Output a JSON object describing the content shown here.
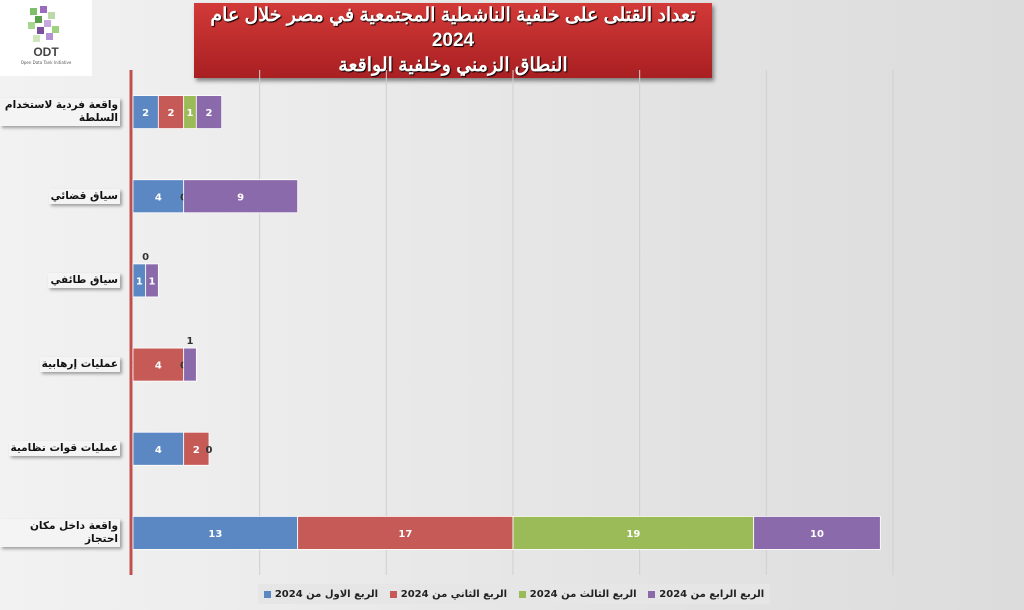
{
  "logo": {
    "text": "ODT",
    "subtitle": "Open Data Tank Initiative"
  },
  "title_lines": [
    "تعداد القتلى على خلفية الناشطية المجتمعية في مصر خلال عام 2024",
    "النطاق الزمني وخلفية الواقعة"
  ],
  "chart_data": {
    "type": "bar",
    "orientation": "horizontal",
    "stacked": true,
    "title": "تعداد القتلى على خلفية الناشطية المجتمعية في مصر خلال عام 2024 النطاق الزمني وخلفية الواقعة",
    "categories": [
      "واقعة فردية لاستخدام السلطة",
      "سياق قضائي",
      "سياق طائفي",
      "عمليات إرهابية",
      "عمليات قوات نظامية",
      "واقعة داخل مكان احتجاز"
    ],
    "series": [
      {
        "name": "الربع الاول من 2024",
        "color": "#5b87c2",
        "values": [
          2,
          4,
          1,
          0,
          4,
          13
        ]
      },
      {
        "name": "الربع الثاني من 2024",
        "color": "#c55a57",
        "values": [
          2,
          0,
          0,
          4,
          2,
          17
        ]
      },
      {
        "name": "الربع الثالث من 2024",
        "color": "#9bbb59",
        "values": [
          1,
          null,
          null,
          0,
          0,
          19
        ]
      },
      {
        "name": "الربع الرابع من 2024",
        "color": "#8a6aab",
        "values": [
          2,
          9,
          1,
          1,
          null,
          10
        ]
      }
    ],
    "xlim": [
      0,
      60
    ],
    "grid": true,
    "legend": "bottom",
    "axis_color": "#c0504d"
  }
}
